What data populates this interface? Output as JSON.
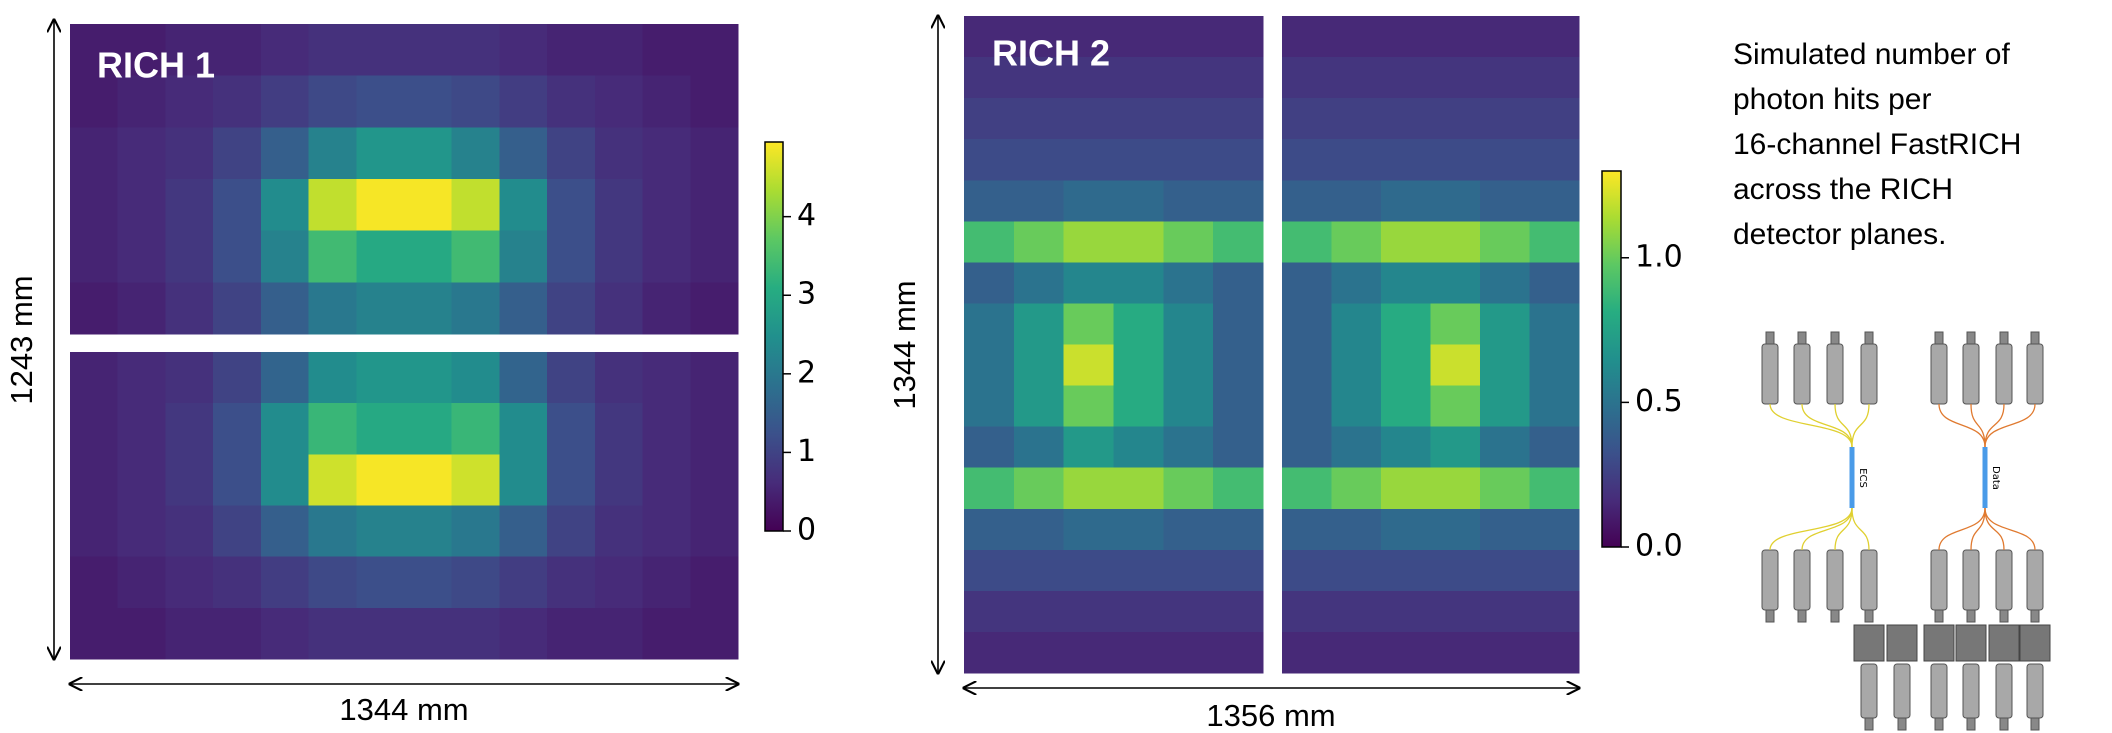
{
  "chart_data": [
    {
      "type": "heatmap",
      "title": "RICH 1",
      "xlabel": "1344 mm",
      "ylabel": "1243 mm",
      "colormap": "viridis",
      "clim": [
        0,
        4.95
      ],
      "cticks": [
        0,
        1,
        2,
        3,
        4
      ],
      "panels": [
        {
          "values": [
            [
              0.4,
              0.4,
              0.5,
              0.5,
              0.6,
              0.7,
              0.7,
              0.7,
              0.7,
              0.6,
              0.5,
              0.5,
              0.4,
              0.4
            ],
            [
              0.4,
              0.5,
              0.6,
              0.7,
              0.9,
              1.1,
              1.2,
              1.2,
              1.1,
              0.9,
              0.7,
              0.6,
              0.5,
              0.4
            ],
            [
              0.5,
              0.6,
              0.7,
              1.0,
              1.5,
              2.2,
              2.6,
              2.6,
              2.2,
              1.5,
              1.0,
              0.7,
              0.6,
              0.5
            ],
            [
              0.5,
              0.6,
              0.8,
              1.2,
              2.4,
              4.5,
              4.9,
              4.9,
              4.5,
              2.4,
              1.2,
              0.8,
              0.6,
              0.5
            ],
            [
              0.5,
              0.6,
              0.8,
              1.2,
              2.2,
              3.4,
              3.0,
              3.0,
              3.4,
              2.2,
              1.2,
              0.8,
              0.6,
              0.5
            ],
            [
              0.4,
              0.5,
              0.7,
              1.0,
              1.5,
              2.0,
              2.2,
              2.2,
              2.0,
              1.5,
              1.0,
              0.7,
              0.5,
              0.4
            ]
          ]
        },
        {
          "values": [
            [
              0.5,
              0.6,
              0.7,
              1.0,
              1.6,
              2.4,
              2.6,
              2.6,
              2.4,
              1.6,
              1.0,
              0.7,
              0.6,
              0.5
            ],
            [
              0.5,
              0.6,
              0.8,
              1.2,
              2.4,
              3.3,
              3.0,
              3.0,
              3.3,
              2.4,
              1.2,
              0.8,
              0.6,
              0.5
            ],
            [
              0.5,
              0.6,
              0.8,
              1.2,
              2.4,
              4.6,
              4.9,
              4.9,
              4.6,
              2.4,
              1.2,
              0.8,
              0.6,
              0.5
            ],
            [
              0.5,
              0.6,
              0.7,
              1.0,
              1.5,
              2.0,
              2.2,
              2.2,
              2.0,
              1.5,
              1.0,
              0.7,
              0.6,
              0.5
            ],
            [
              0.4,
              0.5,
              0.6,
              0.7,
              0.9,
              1.1,
              1.2,
              1.2,
              1.1,
              0.9,
              0.7,
              0.6,
              0.5,
              0.4
            ],
            [
              0.4,
              0.4,
              0.5,
              0.5,
              0.6,
              0.7,
              0.7,
              0.7,
              0.7,
              0.6,
              0.5,
              0.5,
              0.4,
              0.4
            ]
          ]
        }
      ]
    },
    {
      "type": "heatmap",
      "title": "RICH 2",
      "xlabel": "1356 mm",
      "ylabel": "1344 mm",
      "colormap": "viridis",
      "clim": [
        0,
        1.3
      ],
      "cticks": [
        {
          "value": 0,
          "label": "0.0"
        },
        {
          "value": 0.5,
          "label": "0.5"
        },
        {
          "value": 1,
          "label": "1.0"
        }
      ],
      "panels": [
        {
          "values": [
            [
              0.15,
              0.15,
              0.15,
              0.15,
              0.15,
              0.15
            ],
            [
              0.2,
              0.2,
              0.2,
              0.2,
              0.2,
              0.2
            ],
            [
              0.25,
              0.25,
              0.25,
              0.25,
              0.25,
              0.25
            ],
            [
              0.3,
              0.3,
              0.3,
              0.3,
              0.3,
              0.3
            ],
            [
              0.4,
              0.4,
              0.45,
              0.45,
              0.4,
              0.4
            ],
            [
              0.9,
              1.0,
              1.1,
              1.1,
              1.0,
              0.9
            ],
            [
              0.4,
              0.5,
              0.6,
              0.6,
              0.5,
              0.4
            ],
            [
              0.5,
              0.7,
              1.0,
              0.8,
              0.6,
              0.4
            ],
            [
              0.5,
              0.7,
              1.2,
              0.8,
              0.6,
              0.4
            ],
            [
              0.5,
              0.7,
              1.0,
              0.8,
              0.6,
              0.4
            ],
            [
              0.4,
              0.5,
              0.7,
              0.6,
              0.5,
              0.4
            ],
            [
              0.9,
              1.0,
              1.1,
              1.1,
              1.0,
              0.9
            ],
            [
              0.4,
              0.4,
              0.45,
              0.45,
              0.4,
              0.4
            ],
            [
              0.3,
              0.3,
              0.3,
              0.3,
              0.3,
              0.3
            ],
            [
              0.2,
              0.2,
              0.2,
              0.2,
              0.2,
              0.2
            ],
            [
              0.15,
              0.15,
              0.15,
              0.15,
              0.15,
              0.15
            ]
          ]
        },
        {
          "values": [
            [
              0.15,
              0.15,
              0.15,
              0.15,
              0.15,
              0.15
            ],
            [
              0.2,
              0.2,
              0.2,
              0.2,
              0.2,
              0.2
            ],
            [
              0.25,
              0.25,
              0.25,
              0.25,
              0.25,
              0.25
            ],
            [
              0.3,
              0.3,
              0.3,
              0.3,
              0.3,
              0.3
            ],
            [
              0.4,
              0.4,
              0.45,
              0.45,
              0.4,
              0.4
            ],
            [
              0.9,
              1.0,
              1.1,
              1.1,
              1.0,
              0.9
            ],
            [
              0.4,
              0.5,
              0.6,
              0.6,
              0.5,
              0.4
            ],
            [
              0.4,
              0.6,
              0.8,
              1.0,
              0.7,
              0.5
            ],
            [
              0.4,
              0.6,
              0.8,
              1.2,
              0.7,
              0.5
            ],
            [
              0.4,
              0.6,
              0.8,
              1.0,
              0.7,
              0.5
            ],
            [
              0.4,
              0.5,
              0.6,
              0.7,
              0.5,
              0.4
            ],
            [
              0.9,
              1.0,
              1.1,
              1.1,
              1.0,
              0.9
            ],
            [
              0.4,
              0.4,
              0.45,
              0.45,
              0.4,
              0.4
            ],
            [
              0.3,
              0.3,
              0.3,
              0.3,
              0.3,
              0.3
            ],
            [
              0.2,
              0.2,
              0.2,
              0.2,
              0.2,
              0.2
            ],
            [
              0.15,
              0.15,
              0.15,
              0.15,
              0.15,
              0.15
            ]
          ]
        }
      ]
    }
  ],
  "caption": [
    "Simulated number of",
    "photon hits per",
    "16-channel FastRICH",
    "across the RICH",
    "detector planes."
  ],
  "diagram": {
    "labels": [
      "ECS",
      "Data"
    ]
  }
}
